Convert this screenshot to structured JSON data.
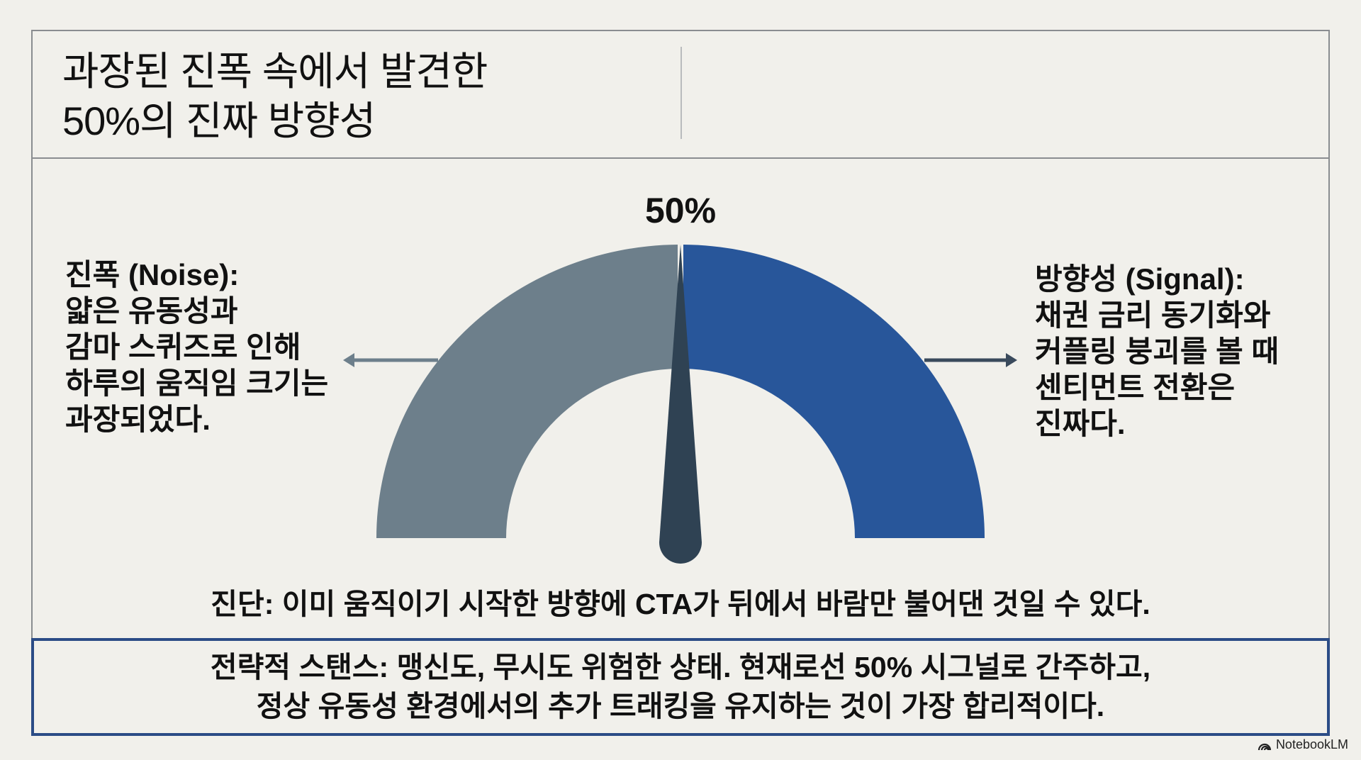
{
  "title": {
    "line1": "과장된 진폭 속에서 발견한",
    "line2": "50%의 진짜 방향성"
  },
  "gauge": {
    "value_label": "50%",
    "value_percent": 50,
    "noise_color": "#6d7f8b",
    "signal_color": "#28569a",
    "needle_color": "#2f4253"
  },
  "noise": {
    "lines": [
      "진폭 (Noise):",
      "얇은 유동성과",
      "감마 스퀴즈로 인해",
      "하루의 움직임 크기는",
      "과장되었다."
    ]
  },
  "signal": {
    "lines": [
      "방향성 (Signal):",
      "채권 금리 동기화와",
      "커플링 붕괴를 볼 때",
      "센티먼트 전환은",
      "진짜다."
    ]
  },
  "diagnosis": "진단: 이미 움직이기 시작한 방향에 CTA가 뒤에서 바람만 불어댄 것일 수 있다.",
  "strategy": {
    "line1": "전략적 스탠스: 맹신도, 무시도 위험한 상태. 현재로선 50% 시그널로 간주하고,",
    "line2": "정상 유동성 환경에서의 추가 트래킹을 유지하는 것이 가장 합리적이다.",
    "border_color": "#2b4c86"
  },
  "brand": {
    "label": "NotebookLM",
    "icon": "notebooklm-logo-icon"
  }
}
